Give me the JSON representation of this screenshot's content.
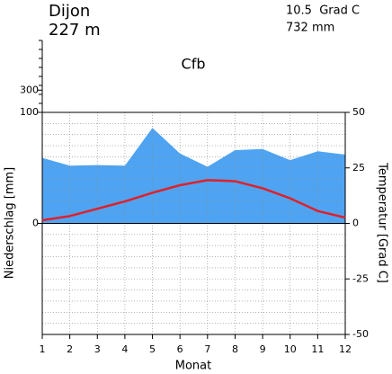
{
  "chart_data": {
    "type": "climate",
    "station": "Dijon",
    "elevation": "227 m",
    "mean_temperature": "10.5  Grad C",
    "annual_precipitation": "732 mm",
    "climate_class": "Cfb",
    "y_label": "Niederschlag [mm]",
    "y2_label": "Temperatur [Grad C]",
    "x_label": "Monat",
    "x": [
      1,
      2,
      3,
      4,
      5,
      6,
      7,
      8,
      9,
      10,
      11,
      12
    ],
    "xlim": [
      1,
      12
    ],
    "xticks": [
      1,
      2,
      3,
      4,
      5,
      6,
      7,
      8,
      9,
      10,
      11,
      12
    ],
    "ylim": [
      -100,
      100
    ],
    "yticks": [
      0,
      100
    ],
    "yticks_upper": [
      300
    ],
    "y2lim": [
      -50,
      50
    ],
    "y2ticks": [
      -50,
      -25,
      0,
      25,
      50
    ],
    "grid": true,
    "series": [
      {
        "name": "Niederschlag",
        "kind": "area",
        "color": "#4ea4f2",
        "axis": "y",
        "values": [
          59,
          52,
          52.5,
          52,
          86,
          63,
          51,
          66,
          67,
          57,
          65,
          62
        ]
      },
      {
        "name": "Temperatur",
        "kind": "line",
        "color": "#e0202a",
        "axis": "y2",
        "values": [
          1.4,
          3.3,
          6.6,
          9.9,
          13.8,
          17.2,
          19.5,
          19.0,
          15.8,
          11.3,
          5.6,
          2.6
        ]
      }
    ]
  }
}
